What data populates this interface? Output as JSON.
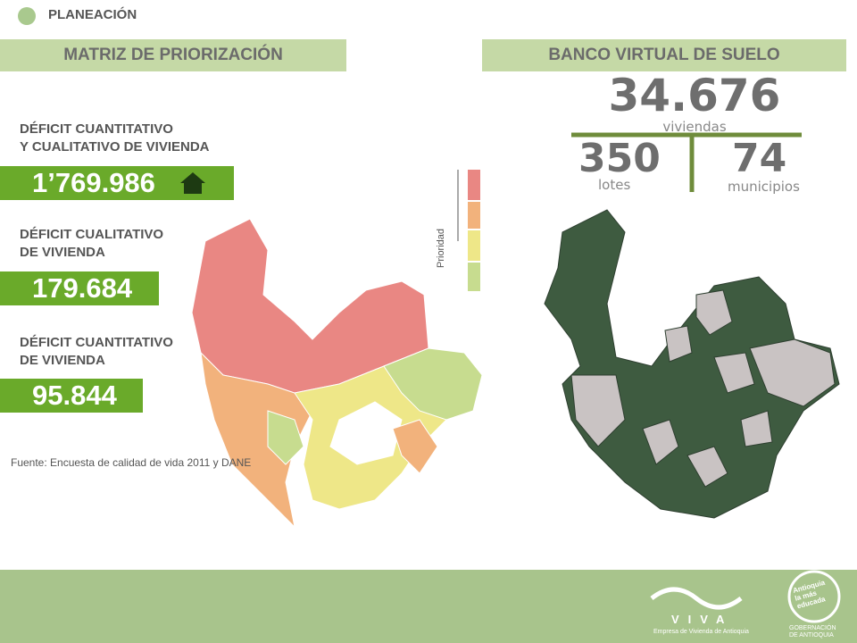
{
  "header": {
    "section": "PLANEACIÓN"
  },
  "left": {
    "title": "MATRIZ DE PRIORIZACIÓN",
    "items": [
      {
        "label": [
          "DÉFICIT CUANTITATIVO",
          "Y CUALITATIVO DE VIVIENDA"
        ],
        "value": "1’769.986"
      },
      {
        "label": [
          "DÉFICIT CUALITATIVO",
          "DE VIVIENDA"
        ],
        "value": "179.684"
      },
      {
        "label": [
          "DÉFICIT CUANTITATIVO",
          "DE VIVIENDA"
        ],
        "value": "95.844"
      }
    ],
    "source": "Fuente: Encuesta de calidad de vida 2011 y DANE",
    "legend": "Prioridad"
  },
  "right": {
    "title": "BANCO VIRTUAL DE SUELO",
    "total": {
      "value": "34.676",
      "unit": "viviendas"
    },
    "lots": {
      "value": "350",
      "unit": "lotes"
    },
    "towns": {
      "value": "74",
      "unit": "municipios"
    }
  },
  "footer": {
    "viva": "VIVA",
    "viva_sub": "Empresa de Vivienda de Antioquia",
    "badge": [
      "Antioquia",
      "la más",
      "educada"
    ],
    "gov": [
      "GOBERNACIÓN",
      "DE ANTIOQUIA"
    ]
  }
}
